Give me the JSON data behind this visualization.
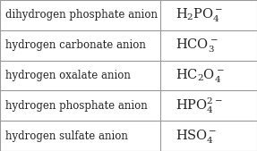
{
  "rows": [
    {
      "name": "dihydrogen phosphate anion",
      "formula": "$\\mathregular{H_2PO_4^-}$"
    },
    {
      "name": "hydrogen carbonate anion",
      "formula": "$\\mathregular{HCO_3^-}$"
    },
    {
      "name": "hydrogen oxalate anion",
      "formula": "$\\mathregular{HC_2O_4^-}$"
    },
    {
      "name": "hydrogen phosphate anion",
      "formula": "$\\mathregular{HPO_4^{2-}}$"
    },
    {
      "name": "hydrogen sulfate anion",
      "formula": "$\\mathregular{HSO_4^-}$"
    }
  ],
  "col_split": 0.625,
  "bg_color": "#ffffff",
  "border_color": "#999999",
  "text_color": "#222222",
  "name_font_size": 8.5,
  "formula_font_size": 10.5,
  "fig_width": 2.87,
  "fig_height": 1.69,
  "dpi": 100
}
